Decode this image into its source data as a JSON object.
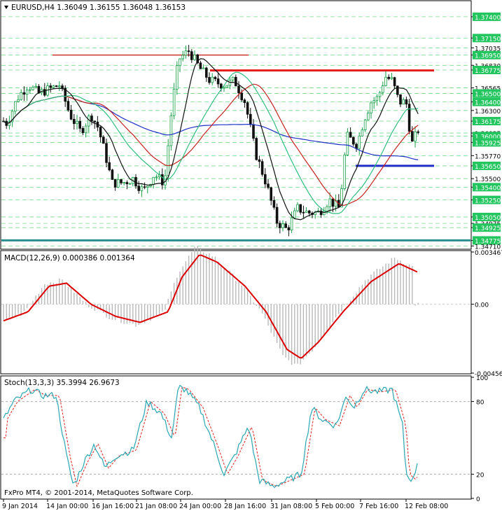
{
  "chart_data": [
    {
      "type": "candlestick",
      "panel": "main",
      "title": "EURUSD,H4  1.36049 1.36155 1.36048 1.36153",
      "symbol": "EURUSD,H4",
      "ohlc_header": "1.36049 1.36155 1.36048 1.36153",
      "ylim": [
        1.3468,
        1.3758
      ],
      "y_ticks": [
        "1.37400",
        "1.37150",
        "1.37035",
        "1.36950",
        "1.36830",
        "1.36775",
        "1.36565",
        "1.36500",
        "1.36400",
        "1.36300",
        "1.36175",
        "1.36035",
        "1.36000",
        "1.35925",
        "1.35770",
        "1.35650",
        "1.35500",
        "1.35400",
        "1.35250",
        "1.35050",
        "1.34975",
        "1.34925",
        "1.34775",
        "1.34710"
      ],
      "highlighted_levels": [
        "1.37400",
        "1.37150",
        "1.36950",
        "1.36775",
        "1.36500",
        "1.36400",
        "1.36175",
        "1.36000",
        "1.35925",
        "1.35650",
        "1.35400",
        "1.35250",
        "1.35050",
        "1.34925",
        "1.34775"
      ],
      "horizontal_lines": [
        {
          "price": 1.3695,
          "color": "#cc3333"
        },
        {
          "price": 1.3677,
          "color": "#e41b1b"
        },
        {
          "price": 1.3565,
          "color": "#1f2ec8"
        },
        {
          "price": 1.34775,
          "color": "#2a8f8f"
        }
      ],
      "moving_averages": [
        {
          "color": "#1f2ec8",
          "name": "slow MA"
        },
        {
          "color": "#c62121",
          "name": "medium MA"
        },
        {
          "color": "#2fbf7f",
          "name": "MA"
        },
        {
          "color": "#111111",
          "name": "fast MA"
        }
      ],
      "grid": true
    },
    {
      "type": "bar",
      "panel": "macd",
      "title": "MACD(12,26,9) 0.000386 0.001364",
      "y_ticks": [
        "0.003467",
        "0.00",
        "-0.004568"
      ],
      "ylim": [
        -0.004568,
        0.003467
      ],
      "signal_color": "#dd0000",
      "histogram_color": "#b8b8b8"
    },
    {
      "type": "line",
      "panel": "stochastic",
      "title": "Stoch(13,3,3) 35.3994 26.9673",
      "y_ticks": [
        "100",
        "80",
        "20",
        "0"
      ],
      "ylim": [
        0,
        100
      ],
      "main_color": "#2aa7b0",
      "signal_color": "#dd2222"
    }
  ],
  "x_axis": {
    "labels": [
      "9 Jan 2014",
      "14 Jan 00:00",
      "16 Jan 16:00",
      "21 Jan 08:00",
      "24 Jan 00:00",
      "28 Jan 16:00",
      "31 Jan 08:00",
      "5 Feb 00:00",
      "7 Feb 16:00",
      "12 Feb 08:00"
    ]
  },
  "copyright": "FxPro MT4, © 2001-2014, MetaQuotes Software Corp.",
  "colors": {
    "bull": "#1a9f4a",
    "bear": "#111111",
    "label_bg": "#22c55e",
    "grid": "#7bd88f"
  }
}
